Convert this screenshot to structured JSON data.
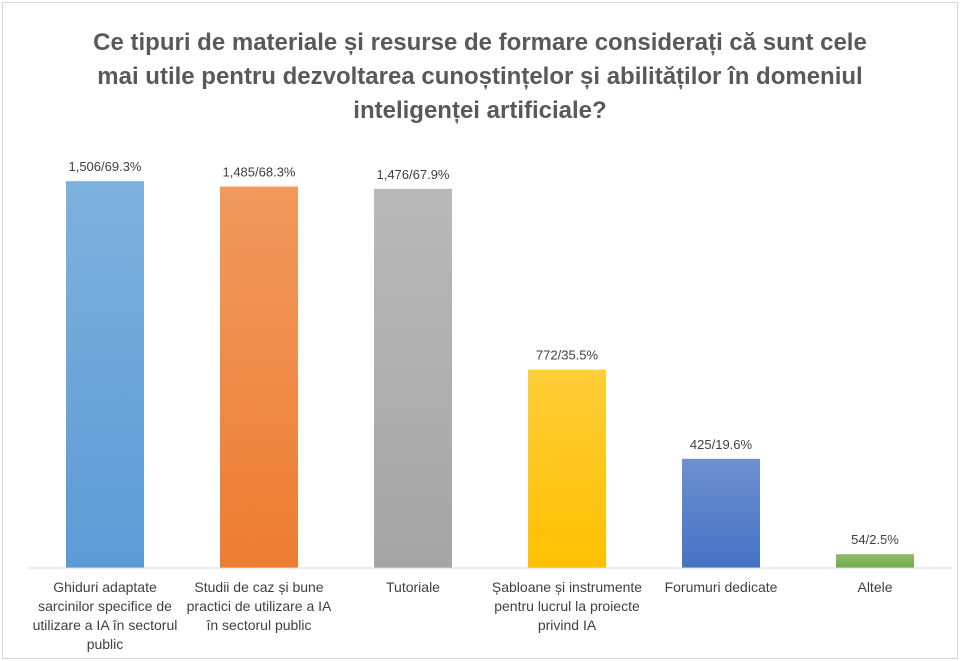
{
  "chart_data": {
    "type": "bar",
    "title": "Ce tipuri de materiale și resurse de formare considerați că sunt cele mai utile pentru dezvoltarea cunoștințelor și abilităților în domeniul inteligenței artificiale?",
    "categories": [
      "Ghiduri adaptate sarcinilor specifice de utilizare a IA în sectorul public",
      "Studii de caz și bune practici de utilizare a IA în sectorul public",
      "Tutoriale",
      "Șabloane și instrumente pentru lucrul la proiecte privind IA",
      "Forumuri dedicate",
      "Altele"
    ],
    "values": [
      1506,
      1485,
      1476,
      772,
      425,
      54
    ],
    "value_labels": [
      "1,506/69.3%",
      "1,485/68.3%",
      "1,476/67.9%",
      "772/35.5%",
      "425/19.6%",
      "54/2.5%"
    ],
    "colors": [
      "#5b9bd5",
      "#ed7d31",
      "#a5a5a5",
      "#ffc000",
      "#4472c4",
      "#70ad47"
    ],
    "ylim": [
      0,
      1600
    ]
  }
}
